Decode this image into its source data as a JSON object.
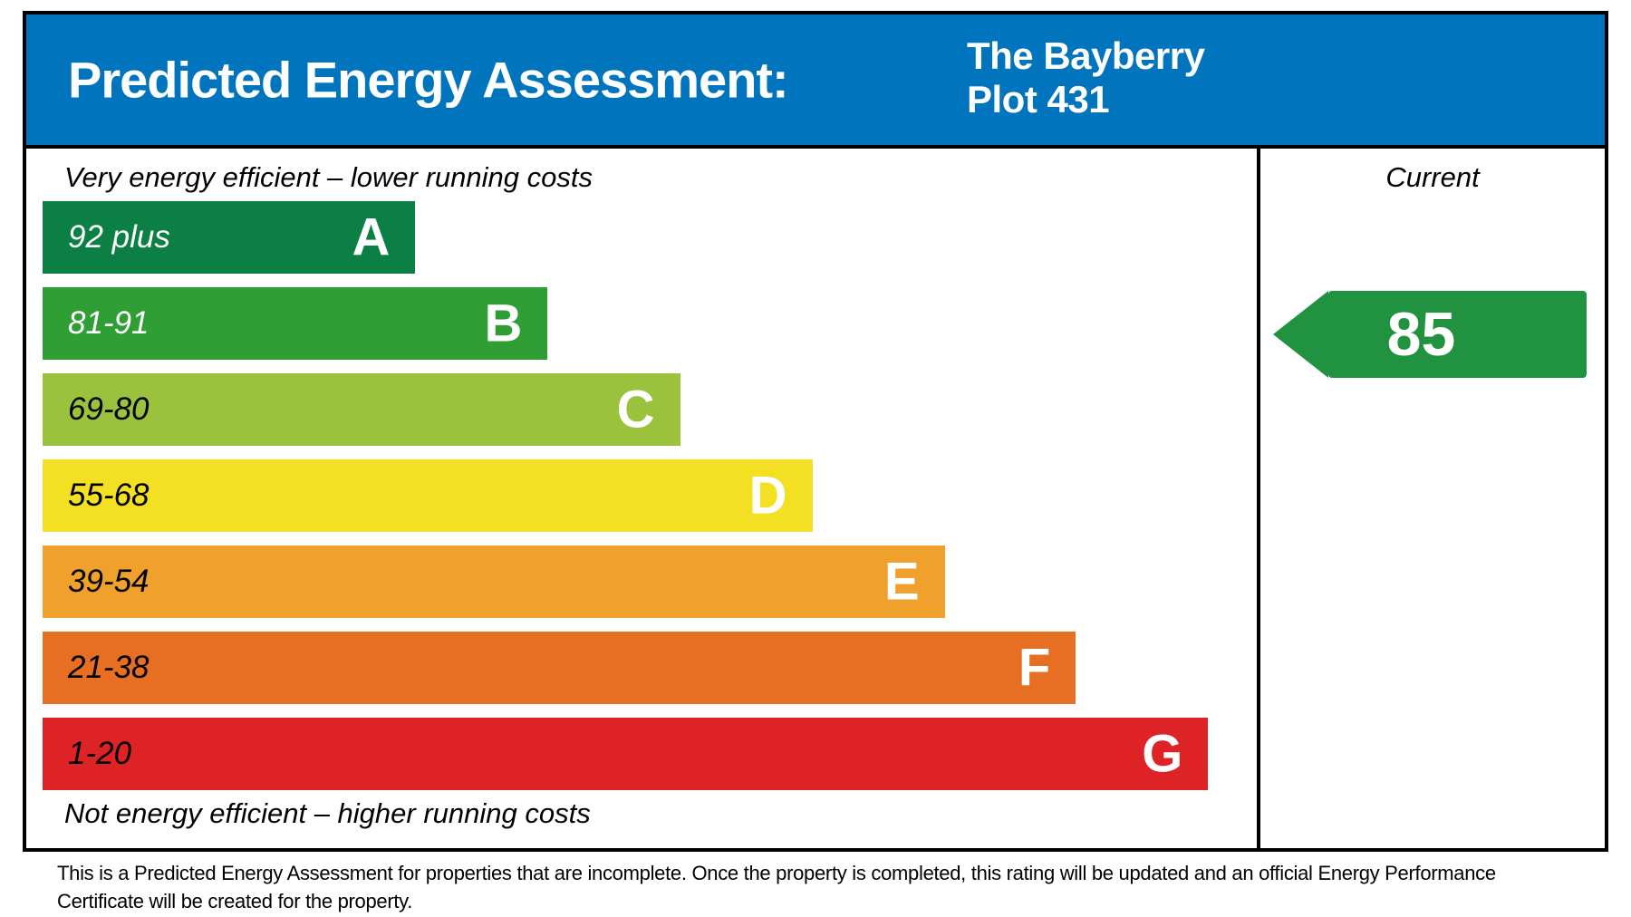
{
  "header": {
    "title": "Predicted Energy Assessment:",
    "property_name": "The Bayberry",
    "plot_label": "Plot 431",
    "background_color": "#0074bc",
    "text_color": "#ffffff"
  },
  "chart": {
    "top_caption": "Very energy efficient – lower running costs",
    "bottom_caption": "Not energy efficient – higher running costs",
    "current_column_label": "Current",
    "bands": [
      {
        "letter": "A",
        "range": "92 plus",
        "color": "#0c8044",
        "width_pct": 30.7,
        "label_color": "#ffffff"
      },
      {
        "letter": "B",
        "range": "81-91",
        "color": "#2f9e35",
        "width_pct": 41.6,
        "label_color": "#ffffff"
      },
      {
        "letter": "C",
        "range": "69-80",
        "color": "#9ac23c",
        "width_pct": 52.5,
        "label_color": "#000000"
      },
      {
        "letter": "D",
        "range": "55-68",
        "color": "#f4e023",
        "width_pct": 63.4,
        "label_color": "#000000"
      },
      {
        "letter": "E",
        "range": "39-54",
        "color": "#f0a12b",
        "width_pct": 74.3,
        "label_color": "#000000"
      },
      {
        "letter": "F",
        "range": "21-38",
        "color": "#e76f24",
        "width_pct": 85.1,
        "label_color": "#000000"
      },
      {
        "letter": "G",
        "range": "1-20",
        "color": "#de2327",
        "width_pct": 96.0,
        "label_color": "#000000"
      }
    ],
    "current_rating": {
      "value": "85",
      "band": "B",
      "row_index": 1,
      "arrow_color": "#21923f"
    }
  },
  "footer": {
    "note_line1": "This is a Predicted Energy Assessment for properties that are incomplete. Once the property is completed, this rating will be updated and an official Energy Performance",
    "note_line2": "Certificate will be created for the property."
  },
  "chart_data": {
    "type": "bar",
    "title": "Predicted Energy Assessment: The Bayberry Plot 431",
    "categories": [
      "A",
      "B",
      "C",
      "D",
      "E",
      "F",
      "G"
    ],
    "band_ranges": [
      "92 plus",
      "81-91",
      "69-80",
      "55-68",
      "39-54",
      "21-38",
      "1-20"
    ],
    "band_colors": [
      "#0c8044",
      "#2f9e35",
      "#9ac23c",
      "#f4e023",
      "#f0a12b",
      "#e76f24",
      "#de2327"
    ],
    "bar_width_pct": [
      30.7,
      41.6,
      52.5,
      63.4,
      74.3,
      85.1,
      96.0
    ],
    "current": {
      "value": 85,
      "band": "B"
    },
    "annotations": [
      "Very energy efficient – lower running costs",
      "Not energy efficient – higher running costs",
      "Current"
    ],
    "legend_position": "none",
    "grid": false
  }
}
